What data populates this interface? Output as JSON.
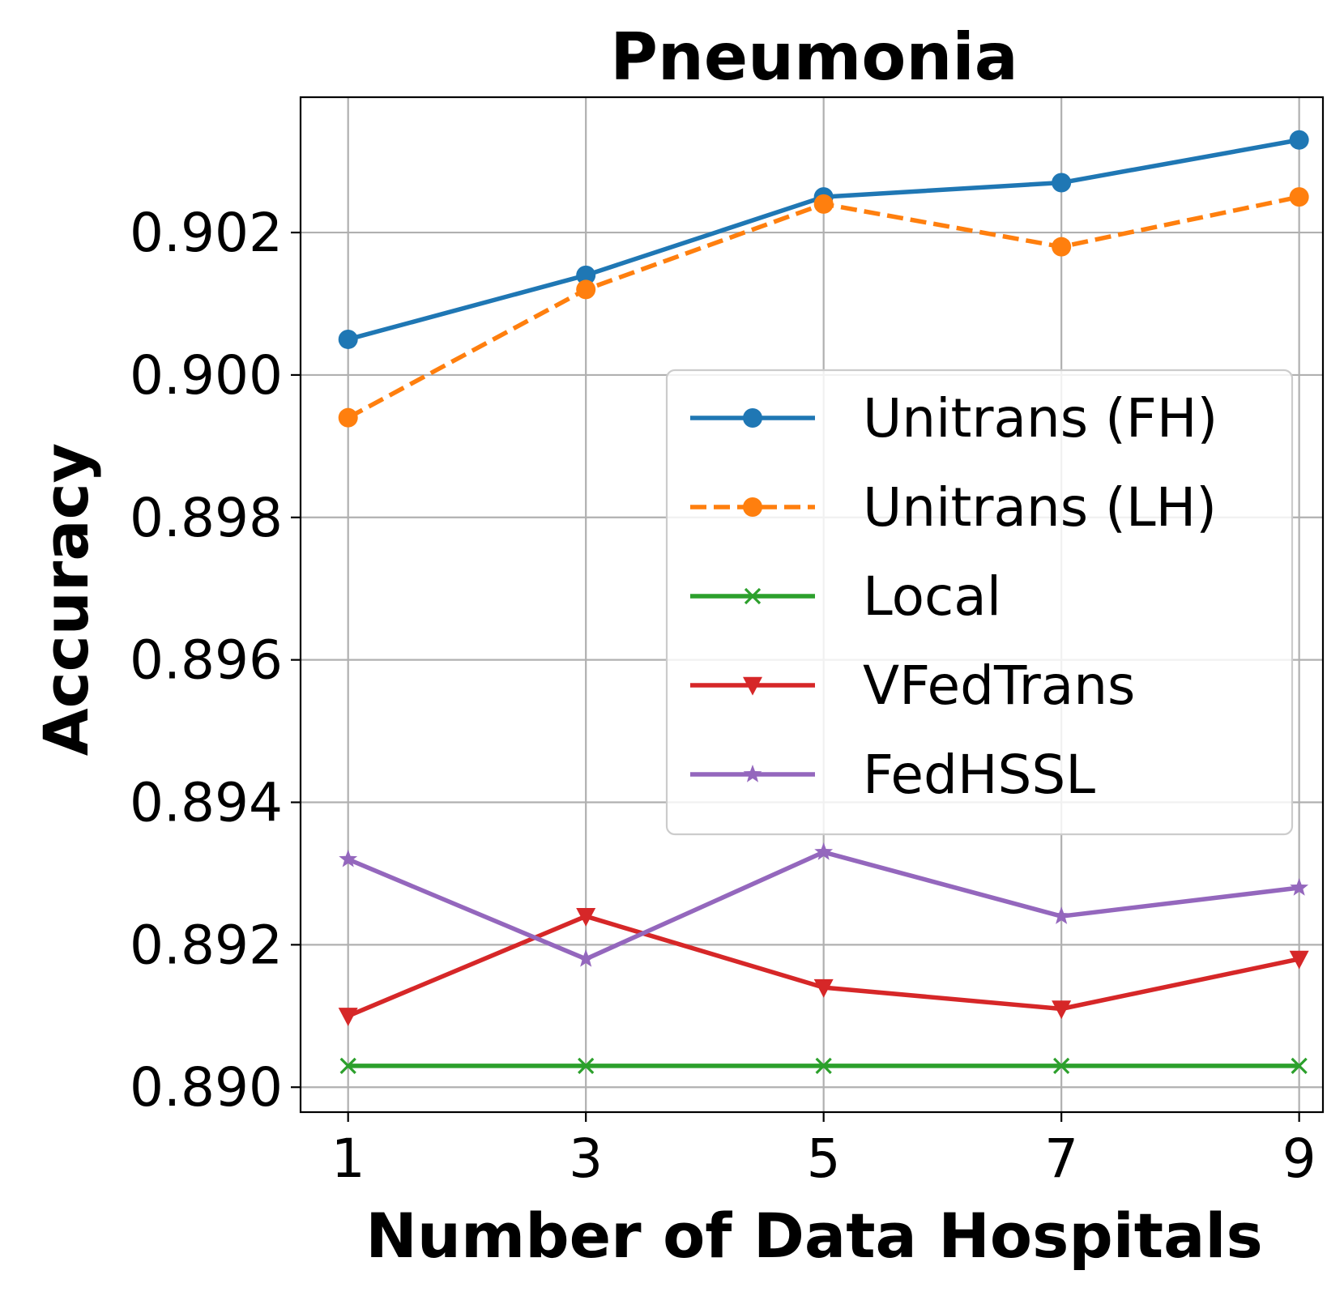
{
  "chart_data": {
    "type": "line",
    "title": "Pneumonia",
    "xlabel": "Number of Data Hospitals",
    "ylabel": "Accuracy",
    "x": [
      1,
      3,
      5,
      7,
      9
    ],
    "x_tick_labels": [
      "1",
      "3",
      "5",
      "7",
      "9"
    ],
    "y_ticks": [
      0.89,
      0.892,
      0.894,
      0.896,
      0.898,
      0.9,
      0.902
    ],
    "y_tick_labels": [
      "0.890",
      "0.892",
      "0.894",
      "0.896",
      "0.898",
      "0.900",
      "0.902"
    ],
    "xlim": [
      0.6,
      9.2
    ],
    "ylim": [
      0.88965,
      0.9039
    ],
    "grid": true,
    "legend_position": "center-right",
    "series": [
      {
        "name": "Unitrans (FH)",
        "color": "#1f77b4",
        "marker": "circle",
        "linestyle": "solid",
        "values": [
          0.9005,
          0.9014,
          0.9025,
          0.9027,
          0.9033
        ]
      },
      {
        "name": "Unitrans (LH)",
        "color": "#ff7f0e",
        "marker": "circle",
        "linestyle": "dashed",
        "values": [
          0.8994,
          0.9012,
          0.9024,
          0.9018,
          0.9025
        ]
      },
      {
        "name": "Local",
        "color": "#2ca02c",
        "marker": "x",
        "linestyle": "solid",
        "values": [
          0.8903,
          0.8903,
          0.8903,
          0.8903,
          0.8903
        ]
      },
      {
        "name": "VFedTrans",
        "color": "#d62728",
        "marker": "triangle-down",
        "linestyle": "solid",
        "values": [
          0.891,
          0.8924,
          0.8914,
          0.8911,
          0.8918
        ]
      },
      {
        "name": "FedHSSL",
        "color": "#9467bd",
        "marker": "star",
        "linestyle": "solid",
        "values": [
          0.8932,
          0.8918,
          0.8933,
          0.8924,
          0.8928
        ]
      }
    ]
  }
}
